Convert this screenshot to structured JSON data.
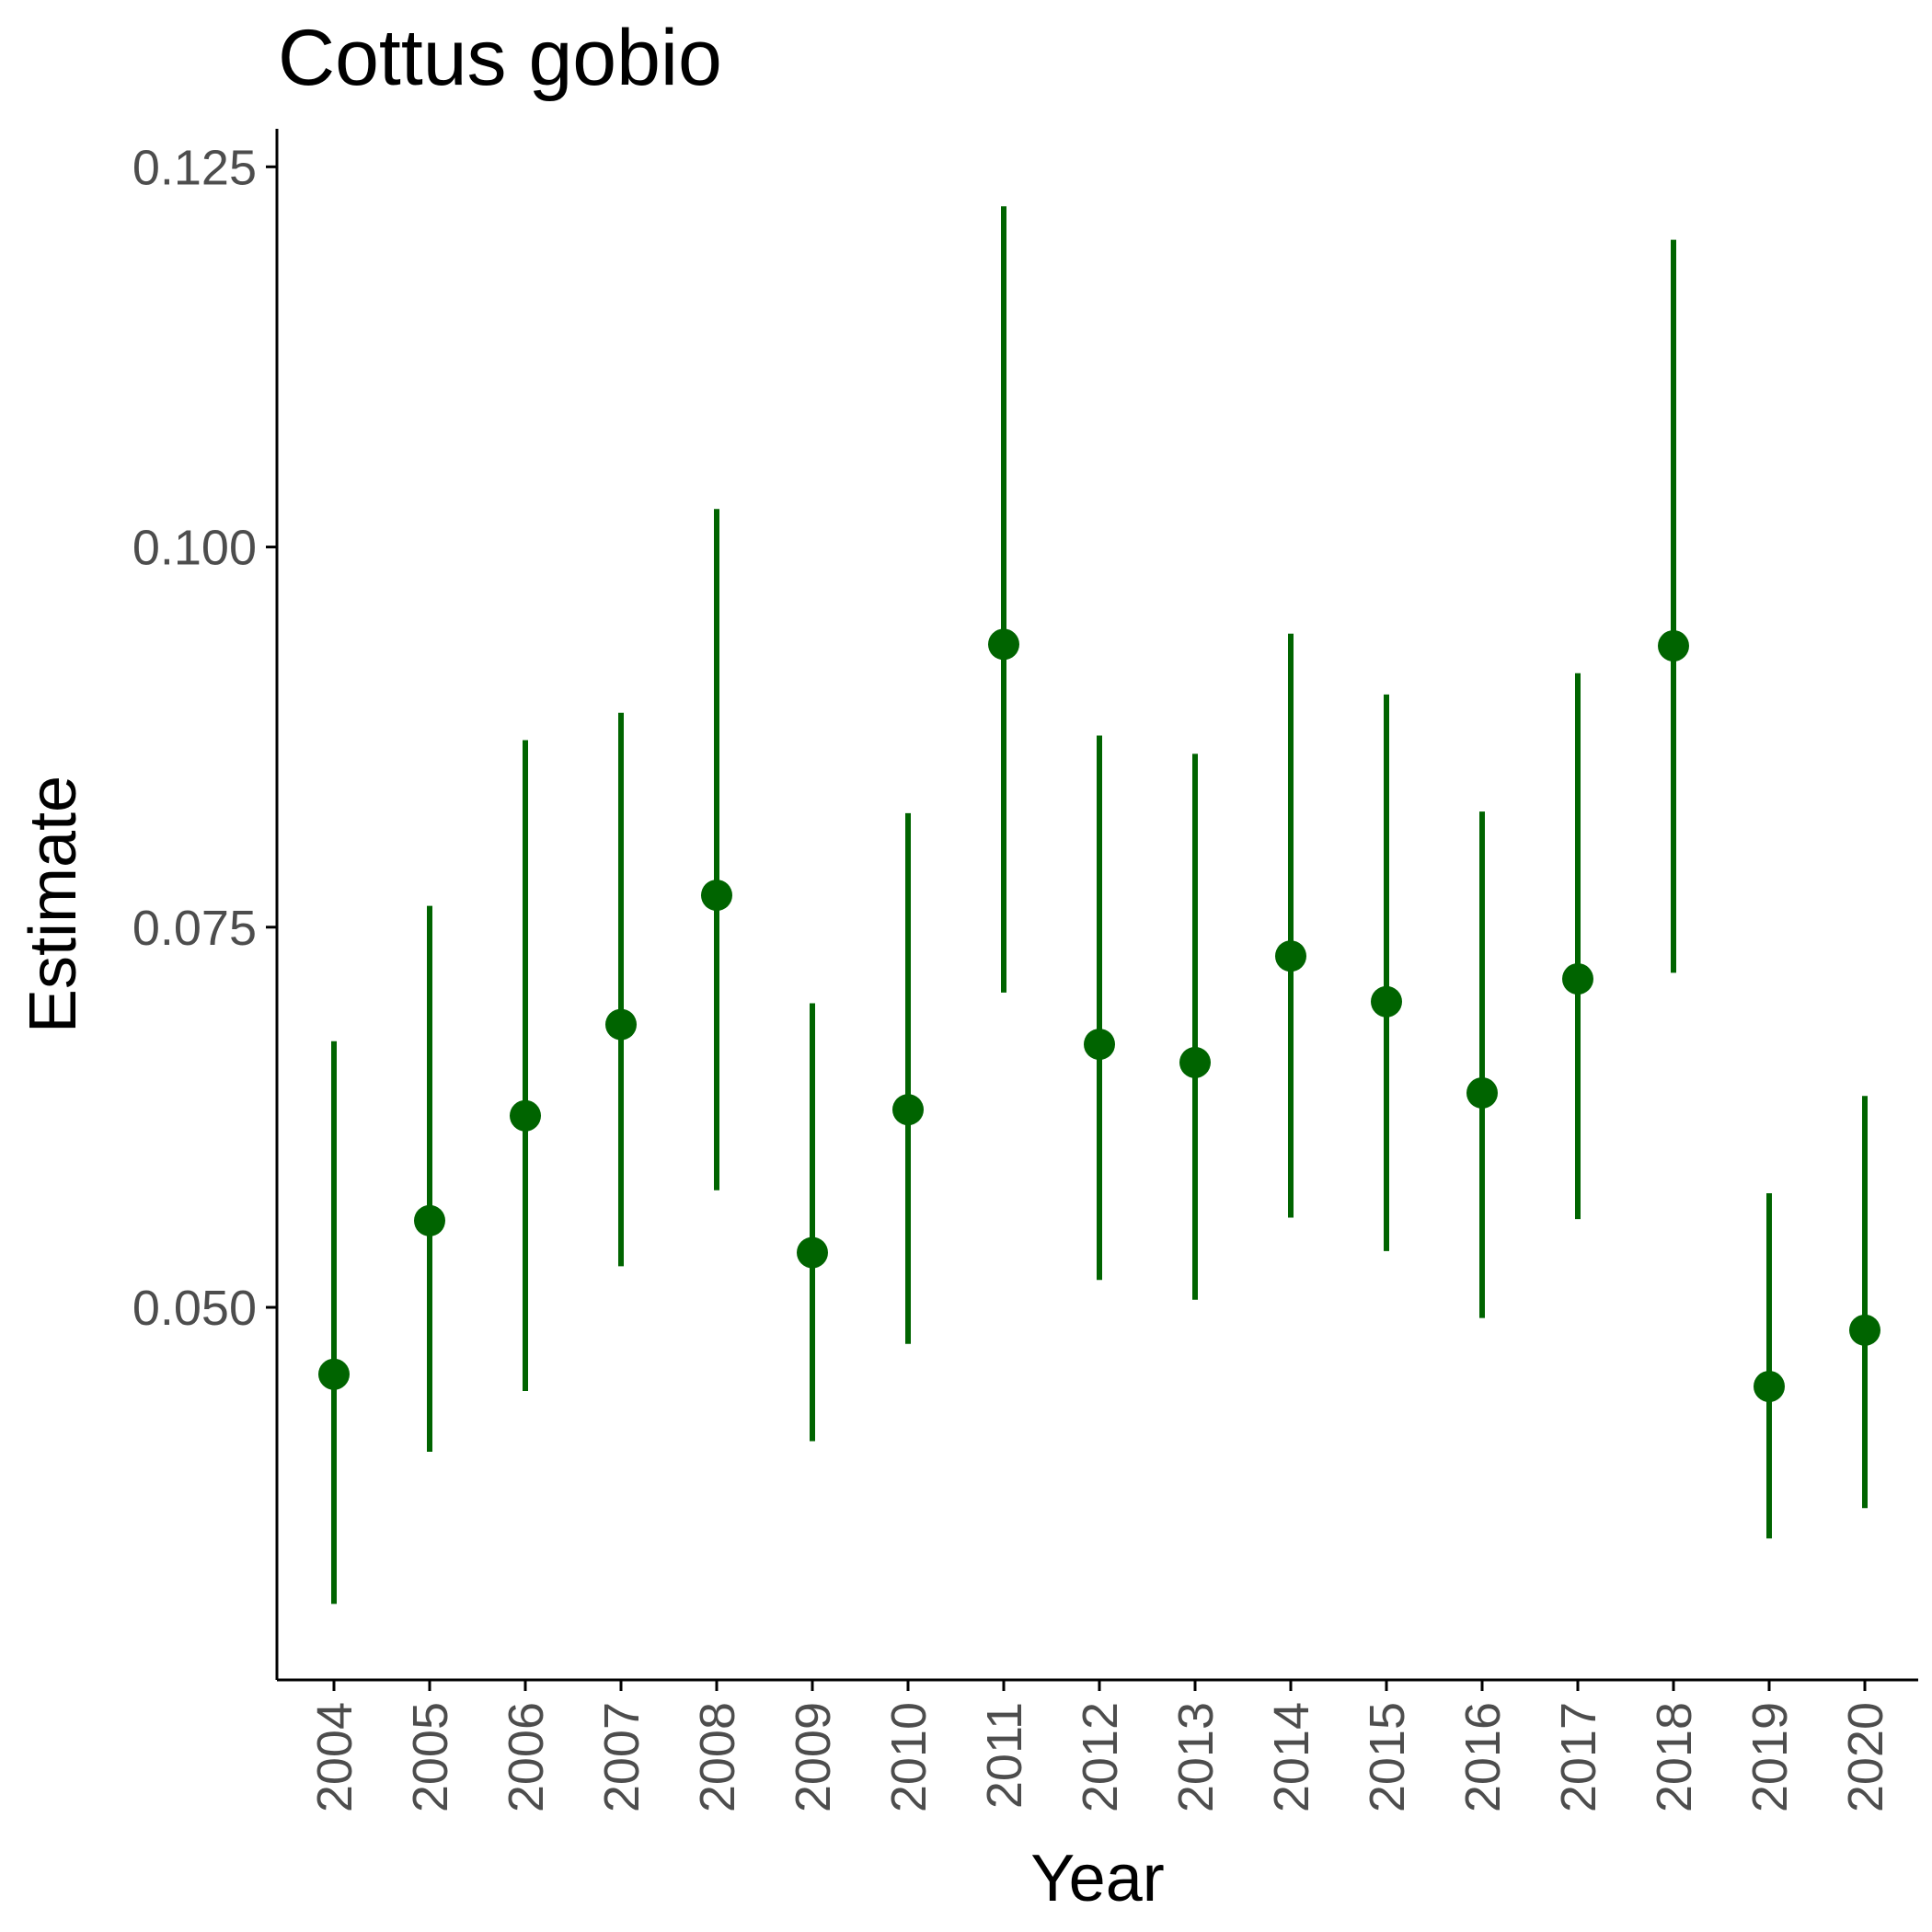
{
  "chart_data": {
    "type": "scatter",
    "title": "Cottus gobio",
    "xlabel": "Year",
    "ylabel": "Estimate",
    "ylim": [
      0.0255,
      0.1275
    ],
    "yticks": [
      "0.050",
      "0.075",
      "0.100",
      "0.125"
    ],
    "ytick_values": [
      0.05,
      0.075,
      0.1,
      0.125
    ],
    "grid": false,
    "legend": "none",
    "color": "#006400",
    "categories": [
      "2004",
      "2005",
      "2006",
      "2007",
      "2008",
      "2009",
      "2010",
      "2011",
      "2012",
      "2013",
      "2014",
      "2015",
      "2016",
      "2017",
      "2018",
      "2019",
      "2020"
    ],
    "estimate": [
      0.0456,
      0.0557,
      0.0626,
      0.0686,
      0.0771,
      0.0536,
      0.063,
      0.0936,
      0.0673,
      0.0661,
      0.0731,
      0.0701,
      0.0641,
      0.0716,
      0.0935,
      0.0448,
      0.0485
    ],
    "lower": [
      0.0305,
      0.0405,
      0.0445,
      0.0527,
      0.0577,
      0.0412,
      0.0476,
      0.0707,
      0.0518,
      0.0505,
      0.0559,
      0.0537,
      0.0493,
      0.0558,
      0.072,
      0.0348,
      0.0368
    ],
    "upper": [
      0.0675,
      0.0764,
      0.0873,
      0.0891,
      0.1025,
      0.07,
      0.0825,
      0.1224,
      0.0876,
      0.0864,
      0.0943,
      0.0903,
      0.0826,
      0.0917,
      0.1202,
      0.0575,
      0.0639
    ]
  }
}
